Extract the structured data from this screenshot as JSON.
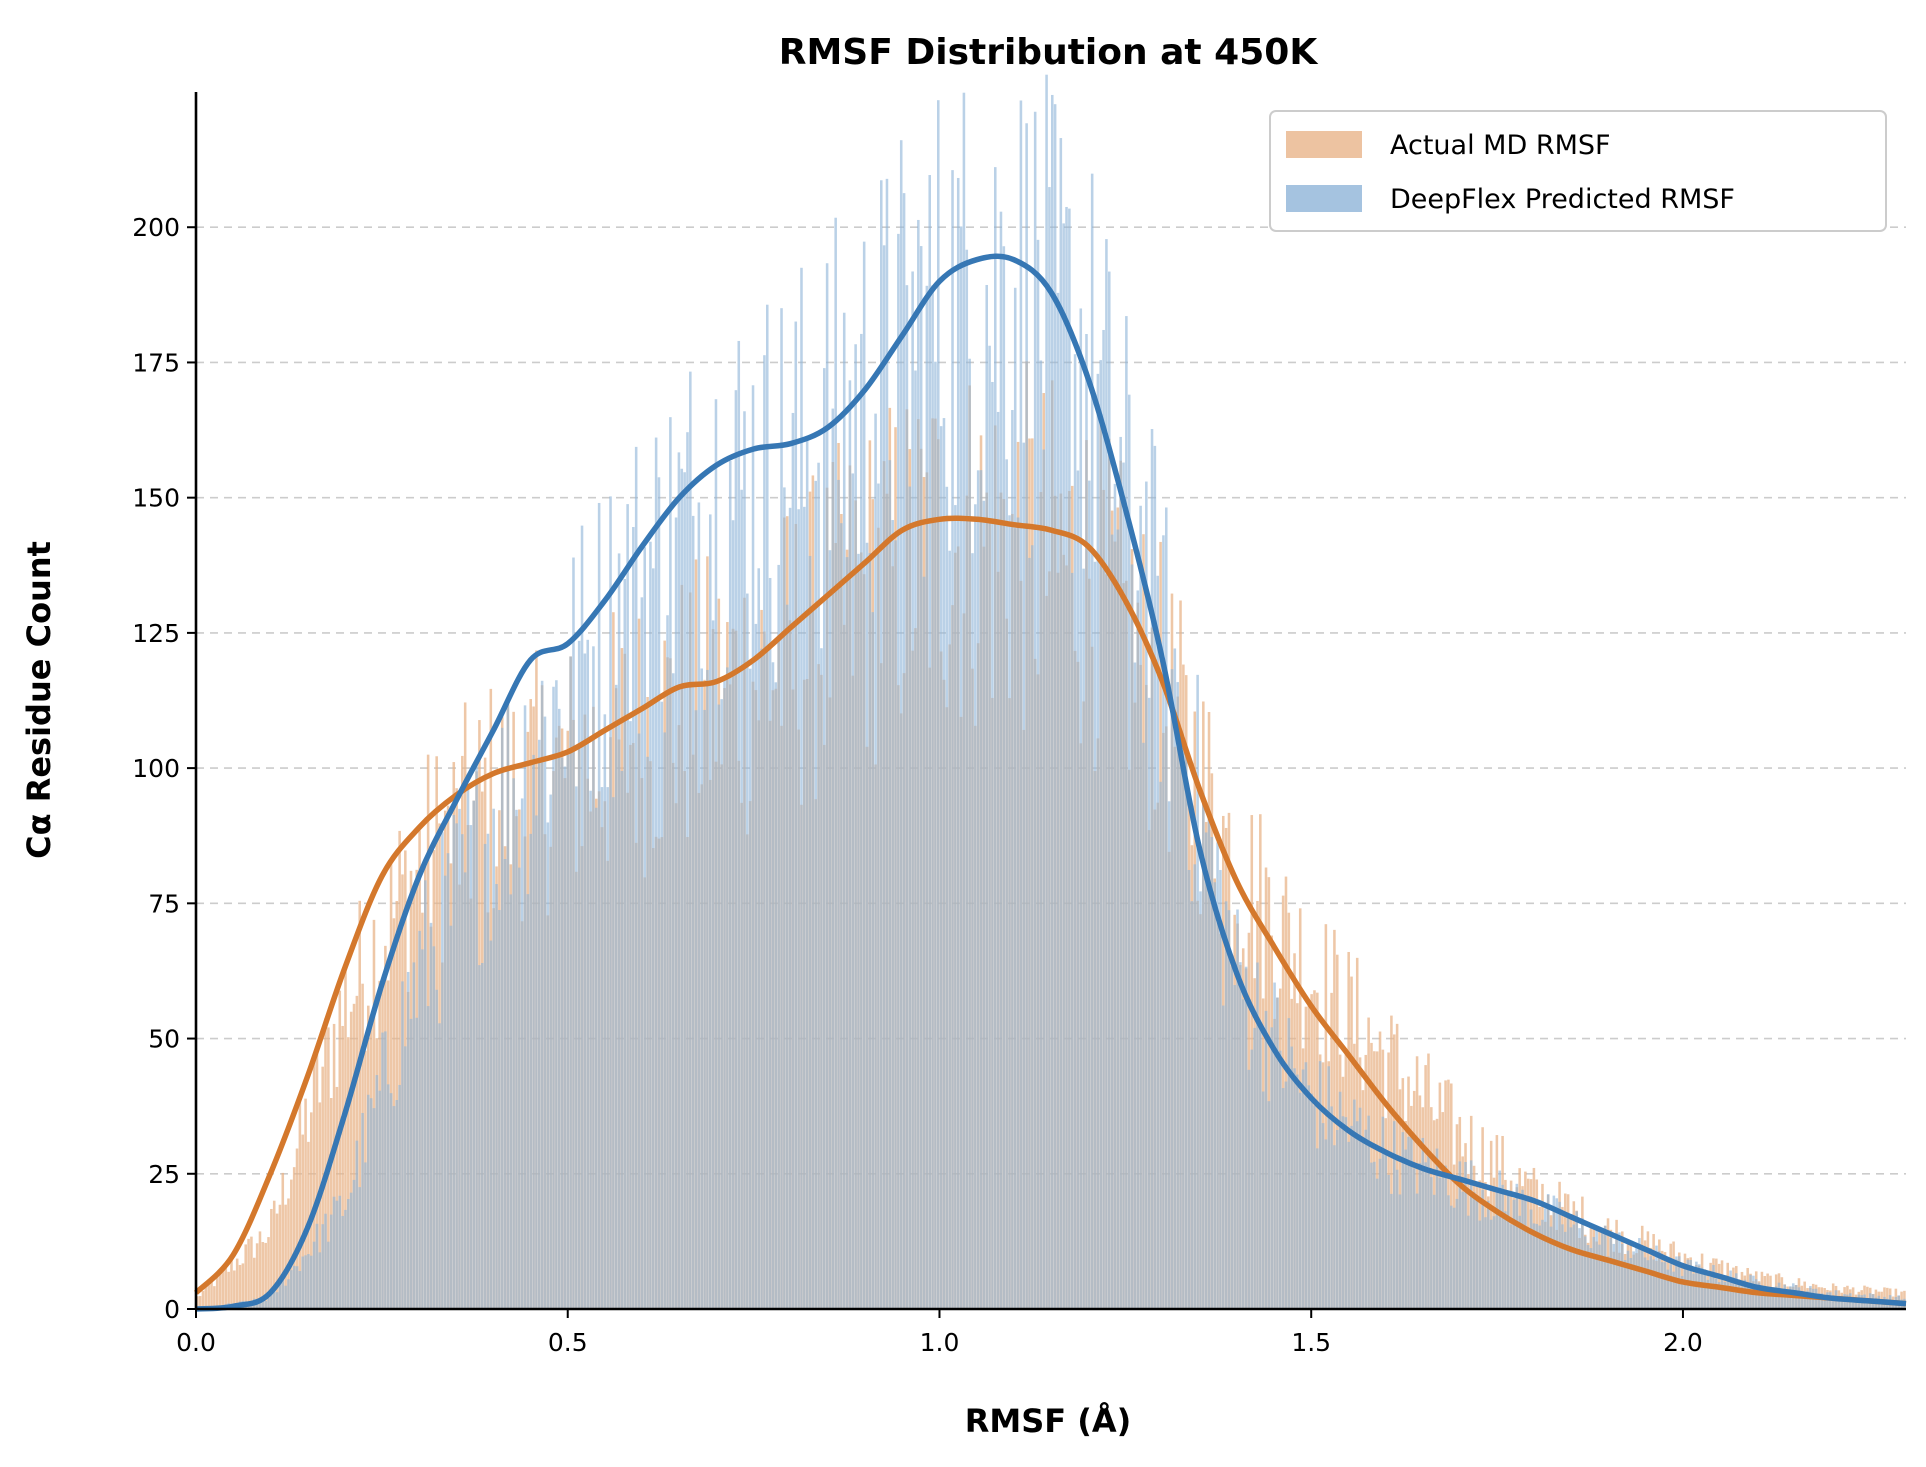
{
  "chart_data": {
    "type": "bar",
    "title": "RMSF Distribution at 450K",
    "xlabel": "RMSF (Å)",
    "ylabel": "Cα Residue Count",
    "xlim": [
      0.0,
      2.3
    ],
    "ylim": [
      0,
      225
    ],
    "x_ticks": [
      "0.0",
      "0.5",
      "1.0",
      "1.5",
      "2.0"
    ],
    "x_tick_values": [
      0.0,
      0.5,
      1.0,
      1.5,
      2.0
    ],
    "y_ticks": [
      "0",
      "25",
      "50",
      "75",
      "100",
      "125",
      "150",
      "175",
      "200"
    ],
    "y_tick_values": [
      0,
      25,
      50,
      75,
      100,
      125,
      150,
      175,
      200
    ],
    "grid": "horizontal dashed",
    "legend_position": "top-right",
    "legend": [
      {
        "label": "Actual MD RMSF",
        "color": "#e8b48a"
      },
      {
        "label": "DeepFlex Predicted RMSF",
        "color": "#8fb4d8"
      }
    ],
    "series": [
      {
        "name": "Actual MD RMSF",
        "kind": "histogram",
        "color": "#e8b48a",
        "x": [
          0.0,
          0.1,
          0.2,
          0.3,
          0.4,
          0.5,
          0.6,
          0.7,
          0.8,
          0.9,
          1.0,
          1.1,
          1.2,
          1.3,
          1.4,
          1.5,
          1.6,
          1.7,
          1.8,
          1.9,
          2.0,
          2.1,
          2.2,
          2.3
        ],
        "values": [
          2,
          15,
          58,
          84,
          97,
          102,
          110,
          116,
          124,
          136,
          146,
          145,
          140,
          116,
          84,
          64,
          48,
          33,
          22,
          15,
          10,
          6,
          4,
          3
        ]
      },
      {
        "name": "DeepFlex Predicted RMSF",
        "kind": "histogram",
        "color": "#8fb4d8",
        "x": [
          0.0,
          0.1,
          0.2,
          0.3,
          0.4,
          0.5,
          0.6,
          0.7,
          0.8,
          0.9,
          1.0,
          1.1,
          1.2,
          1.3,
          1.4,
          1.5,
          1.6,
          1.7,
          1.8,
          1.9,
          2.0,
          2.1,
          2.2,
          2.3
        ],
        "values": [
          0,
          2,
          20,
          64,
          93,
          118,
          138,
          155,
          159,
          172,
          189,
          194,
          179,
          128,
          63,
          40,
          30,
          24,
          19,
          13,
          8,
          5,
          3,
          2
        ]
      },
      {
        "name": "Actual MD RMSF KDE",
        "kind": "line",
        "color": "#d4782c",
        "x": [
          0.0,
          0.05,
          0.1,
          0.15,
          0.2,
          0.25,
          0.3,
          0.35,
          0.4,
          0.45,
          0.5,
          0.55,
          0.6,
          0.65,
          0.7,
          0.75,
          0.8,
          0.85,
          0.9,
          0.95,
          1.0,
          1.05,
          1.1,
          1.15,
          1.2,
          1.25,
          1.3,
          1.35,
          1.4,
          1.45,
          1.5,
          1.55,
          1.6,
          1.65,
          1.7,
          1.75,
          1.8,
          1.85,
          1.9,
          1.95,
          2.0,
          2.05,
          2.1,
          2.15,
          2.2,
          2.25,
          2.3
        ],
        "values": [
          3,
          10,
          25,
          43,
          63,
          80,
          89,
          95,
          99,
          101,
          103,
          107,
          111,
          115,
          116,
          120,
          126,
          132,
          138,
          144,
          146,
          146,
          145,
          144,
          141,
          131,
          116,
          96,
          79,
          67,
          56,
          47,
          38,
          30,
          23,
          18,
          14,
          11,
          9,
          7,
          5,
          4,
          3,
          2.5,
          2,
          1.5,
          1
        ]
      },
      {
        "name": "DeepFlex Predicted RMSF KDE",
        "kind": "line",
        "color": "#3677b4",
        "x": [
          0.0,
          0.05,
          0.1,
          0.15,
          0.2,
          0.25,
          0.3,
          0.35,
          0.4,
          0.45,
          0.5,
          0.55,
          0.6,
          0.65,
          0.7,
          0.75,
          0.8,
          0.85,
          0.9,
          0.95,
          1.0,
          1.05,
          1.1,
          1.15,
          1.2,
          1.25,
          1.3,
          1.35,
          1.4,
          1.45,
          1.5,
          1.55,
          1.6,
          1.65,
          1.7,
          1.75,
          1.8,
          1.85,
          1.9,
          1.95,
          2.0,
          2.05,
          2.1,
          2.15,
          2.2,
          2.25,
          2.3
        ],
        "values": [
          0,
          0.5,
          3,
          15,
          36,
          60,
          80,
          94,
          107,
          120,
          123,
          131,
          141,
          150,
          156,
          159,
          160,
          163,
          170,
          180,
          190,
          194,
          194,
          188,
          172,
          148,
          120,
          85,
          62,
          48,
          39,
          33,
          29,
          26,
          24,
          22,
          20,
          17,
          14,
          11,
          8,
          6,
          4,
          3,
          2,
          1.5,
          1
        ]
      }
    ]
  }
}
